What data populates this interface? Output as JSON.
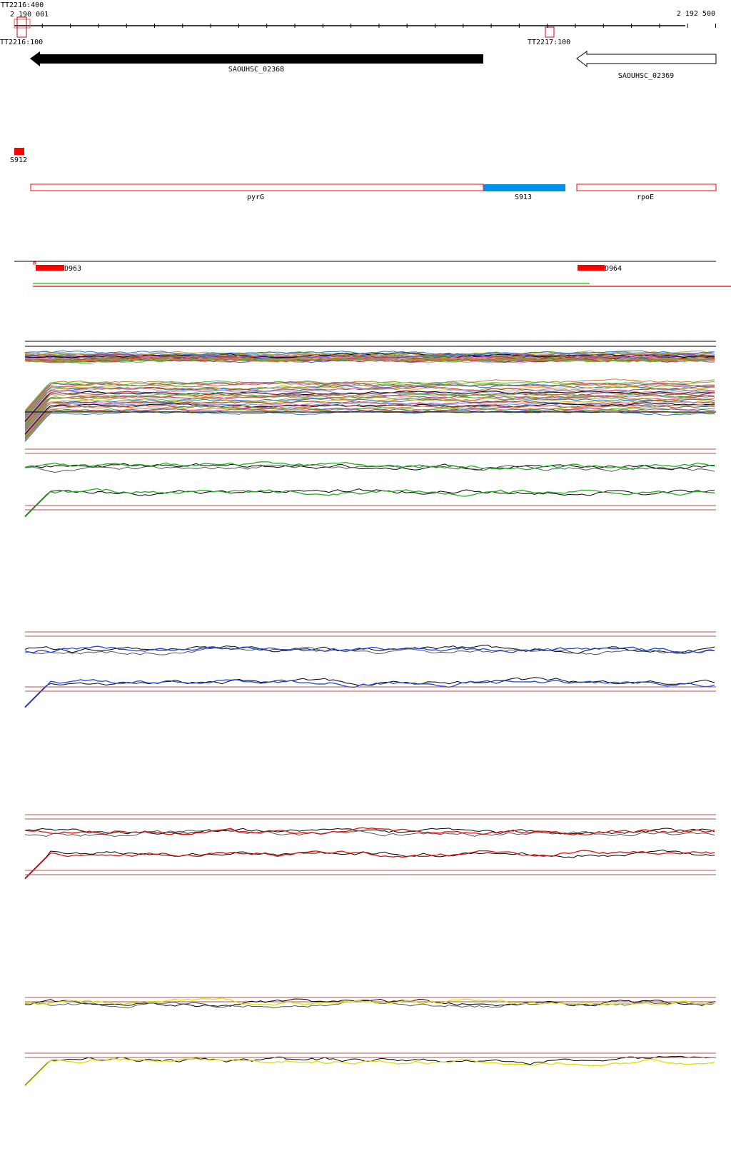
{
  "ruler": {
    "start_label": "2 190 001",
    "end_label": "2 192 500",
    "overlap_label": "TT2216:400"
  },
  "terminators": [
    {
      "label": "TT2216:100"
    },
    {
      "label": "TT2217:100"
    }
  ],
  "genes": [
    {
      "label": "SAOUHSC_02368",
      "strand": "-",
      "fill": "#000000"
    },
    {
      "label": "SAOUHSC_02369",
      "strand": "-",
      "fill": "#ffffff"
    }
  ],
  "features": {
    "s912": "S912",
    "pyrG": "pyrG",
    "s913": "S913",
    "rpoE": "rpoE",
    "d963": "D963",
    "d964": "D964"
  },
  "colors": {
    "red": "#ff0000",
    "blue_feature": "#0090ee",
    "track_green": "#22aa22",
    "track_blue": "#2244dd",
    "track_red": "#dd1111",
    "track_yellow": "#dddd00",
    "threshold": "#b05050"
  }
}
